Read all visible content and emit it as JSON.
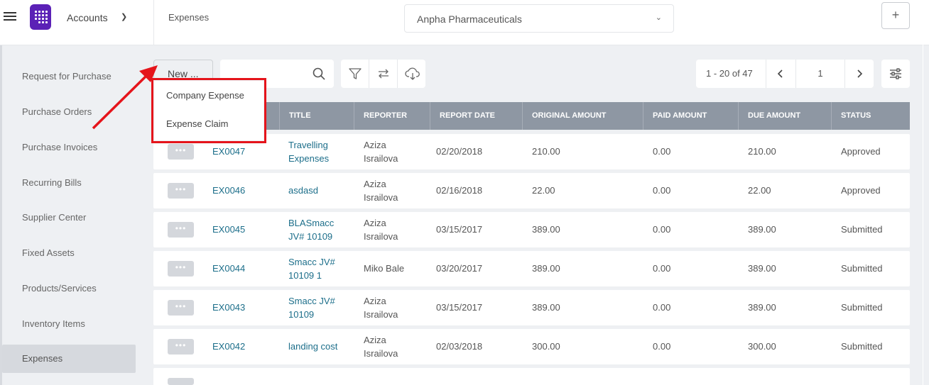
{
  "header": {
    "app_menu_label": "Accounts",
    "breadcrumb": "Expenses",
    "company": "Anpha Pharmaceuticals",
    "add_label": "+"
  },
  "sidebar": {
    "items": [
      {
        "label": "Request for Purchase"
      },
      {
        "label": "Purchase Orders"
      },
      {
        "label": "Purchase Invoices"
      },
      {
        "label": "Recurring Bills"
      },
      {
        "label": "Supplier Center"
      },
      {
        "label": "Fixed Assets"
      },
      {
        "label": "Products/Services"
      },
      {
        "label": "Inventory Items"
      },
      {
        "label": "Expenses",
        "active": true
      }
    ]
  },
  "toolbar": {
    "new_label": "New ...",
    "search_placeholder": "",
    "pagination": {
      "range": "1 - 20 of 47",
      "page": "1"
    }
  },
  "new_menu": {
    "options": [
      "Company Expense",
      "Expense Claim"
    ]
  },
  "table": {
    "columns": [
      "Title",
      "Reporter",
      "Report Date",
      "Original Amount",
      "Paid Amount",
      "Due Amount",
      "Status"
    ],
    "rows": [
      {
        "id": "EX0047",
        "title": "Travelling Expenses",
        "reporter": "Aziza Israilova",
        "date": "02/20/2018",
        "original": "210.00",
        "paid": "0.00",
        "due": "210.00",
        "status": "Approved"
      },
      {
        "id": "EX0046",
        "title": "asdasd",
        "reporter": "Aziza Israilova",
        "date": "02/16/2018",
        "original": "22.00",
        "paid": "0.00",
        "due": "22.00",
        "status": "Approved"
      },
      {
        "id": "EX0045",
        "title": "BLASmacc JV# 10109",
        "reporter": "Aziza Israilova",
        "date": "03/15/2017",
        "original": "389.00",
        "paid": "0.00",
        "due": "389.00",
        "status": "Submitted"
      },
      {
        "id": "EX0044",
        "title": "Smacc JV# 10109 1",
        "reporter": "Miko Bale",
        "date": "03/20/2017",
        "original": "389.00",
        "paid": "0.00",
        "due": "389.00",
        "status": "Submitted"
      },
      {
        "id": "EX0043",
        "title": "Smacc JV# 10109",
        "reporter": "Aziza Israilova",
        "date": "03/15/2017",
        "original": "389.00",
        "paid": "0.00",
        "due": "389.00",
        "status": "Submitted"
      },
      {
        "id": "EX0042",
        "title": "landing cost",
        "reporter": "Aziza Israilova",
        "date": "02/03/2018",
        "original": "300.00",
        "paid": "0.00",
        "due": "300.00",
        "status": "Submitted"
      }
    ]
  },
  "colors": {
    "accent_purple": "#5b21b6",
    "table_header": "#8e97a3",
    "link": "#1c6e8a",
    "annotation_red": "#e5141b"
  }
}
